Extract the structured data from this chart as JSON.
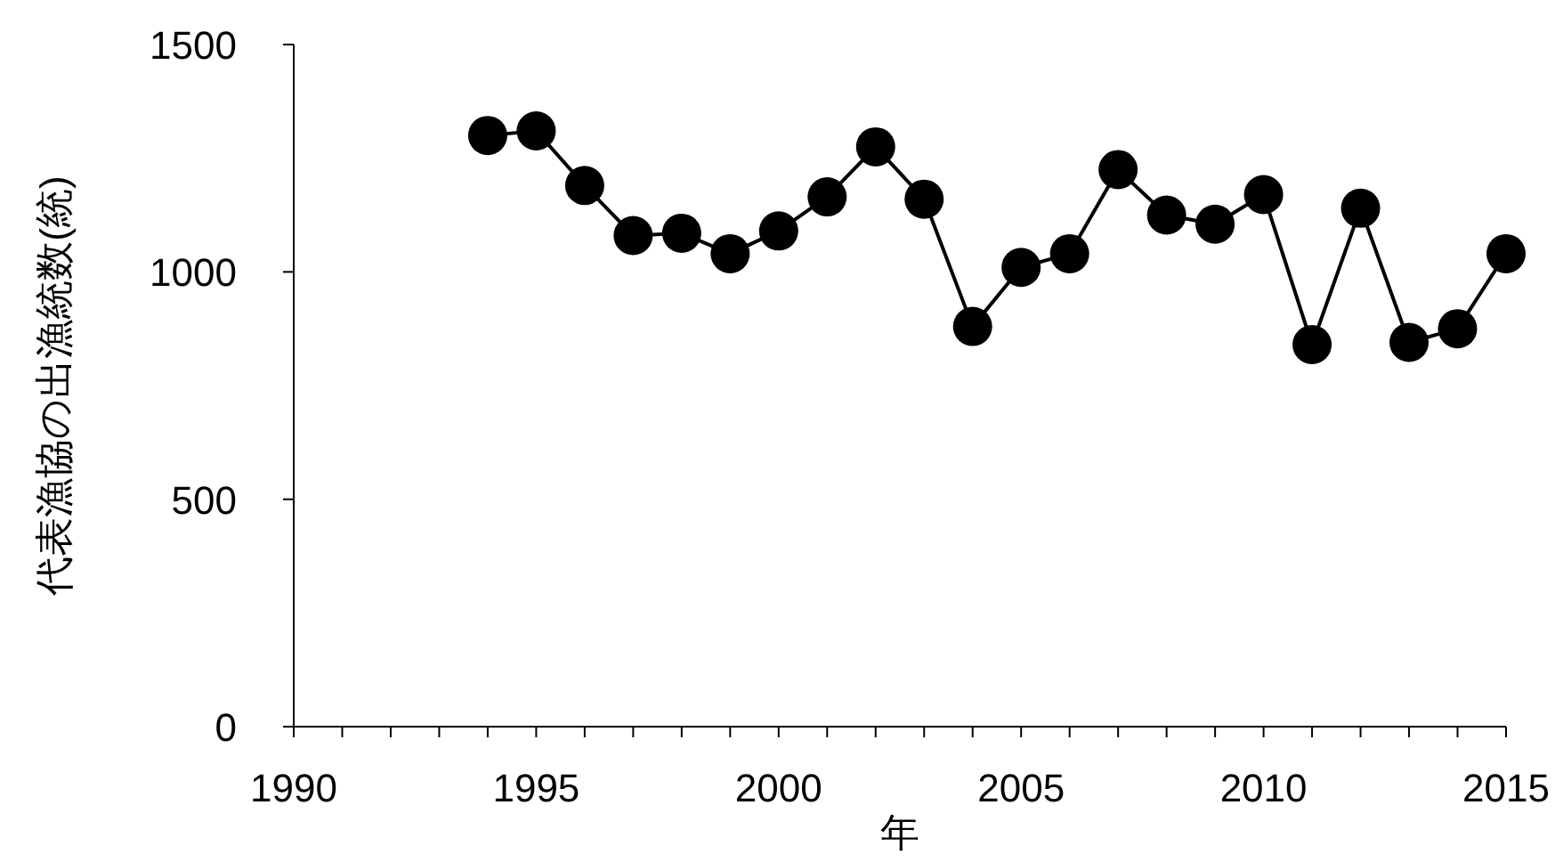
{
  "chart_data": {
    "type": "line",
    "xlabel": "年",
    "ylabel": "代表漁協の出漁統数(統)",
    "x": [
      1994,
      1995,
      1996,
      1997,
      1998,
      1999,
      2000,
      2001,
      2002,
      2003,
      2004,
      2005,
      2006,
      2007,
      2008,
      2009,
      2010,
      2011,
      2012,
      2013,
      2014,
      2015
    ],
    "series": [
      {
        "color": "#000000",
        "values": [
          1300,
          1310,
          1190,
          1080,
          1085,
          1040,
          1090,
          1165,
          1275,
          1160,
          880,
          1010,
          1040,
          1225,
          1125,
          1105,
          1170,
          840,
          1140,
          845,
          875,
          1040
        ]
      }
    ],
    "xlim": [
      1990,
      2015
    ],
    "xticks": [
      1990,
      {
        "value": 1991,
        "label": null
      },
      {
        "value": 1992,
        "label": null
      },
      {
        "value": 1993,
        "label": null
      },
      {
        "value": 1994,
        "label": null
      },
      1995,
      {
        "value": 1996,
        "label": null
      },
      {
        "value": 1997,
        "label": null
      },
      {
        "value": 1998,
        "label": null
      },
      {
        "value": 1999,
        "label": null
      },
      2000,
      {
        "value": 2001,
        "label": null
      },
      {
        "value": 2002,
        "label": null
      },
      {
        "value": 2003,
        "label": null
      },
      {
        "value": 2004,
        "label": null
      },
      2005,
      {
        "value": 2006,
        "label": null
      },
      {
        "value": 2007,
        "label": null
      },
      {
        "value": 2008,
        "label": null
      },
      {
        "value": 2009,
        "label": null
      },
      2010,
      {
        "value": 2011,
        "label": null
      },
      {
        "value": 2012,
        "label": null
      },
      {
        "value": 2013,
        "label": null
      },
      {
        "value": 2014,
        "label": null
      },
      2015
    ],
    "ylim": [
      0,
      1500
    ],
    "yticks": [
      0,
      500,
      1000,
      1500
    ],
    "grid": false,
    "marker": "circle",
    "line_style": "solid"
  }
}
